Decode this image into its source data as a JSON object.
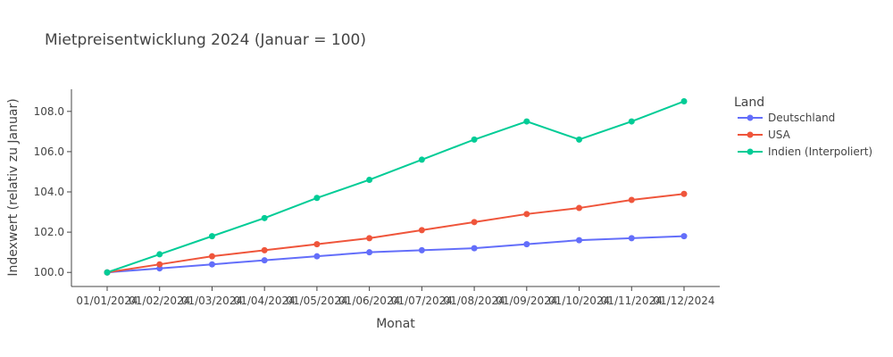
{
  "chart_data": {
    "type": "line",
    "title": "Mietpreisentwicklung 2024 (Januar = 100)",
    "xlabel": "Monat",
    "ylabel": "Indexwert (relativ zu Januar)",
    "x": [
      "01/01/2024",
      "01/02/2024",
      "01/03/2024",
      "01/04/2024",
      "01/05/2024",
      "01/06/2024",
      "01/07/2024",
      "01/08/2024",
      "01/09/2024",
      "01/10/2024",
      "01/11/2024",
      "01/12/2024"
    ],
    "x_tick_labels": [
      "01/01/2024",
      "01/02/2024",
      "01/03/2024",
      "01/04/2024",
      "01/05/2024",
      "01/06/2024",
      "01/07/2024",
      "01/08/2024",
      "01/09/2024",
      "01/10/2024",
      "01/11/2024",
      "01/12/2024"
    ],
    "y_ticks": [
      100,
      102,
      104,
      106,
      108
    ],
    "y_tick_labels": [
      "100.0",
      "102.0",
      "104.0",
      "106.0",
      "108.0"
    ],
    "ylim": [
      99.3,
      109.1
    ],
    "grid": false,
    "legend_title": "Land",
    "legend_position": "right",
    "series": [
      {
        "name": "Deutschland",
        "color": "#636efa",
        "values": [
          100.0,
          100.2,
          100.4,
          100.6,
          100.8,
          101.0,
          101.1,
          101.2,
          101.4,
          101.6,
          101.7,
          101.8
        ]
      },
      {
        "name": "USA",
        "color": "#ef553b",
        "values": [
          100.0,
          100.4,
          100.8,
          101.1,
          101.4,
          101.7,
          102.1,
          102.5,
          102.9,
          103.2,
          103.6,
          103.9
        ]
      },
      {
        "name": "Indien (Interpoliert)",
        "color": "#00cc96",
        "values": [
          100.0,
          100.9,
          101.8,
          102.7,
          103.7,
          104.6,
          105.6,
          106.6,
          107.5,
          106.6,
          107.5,
          108.5
        ]
      }
    ]
  }
}
